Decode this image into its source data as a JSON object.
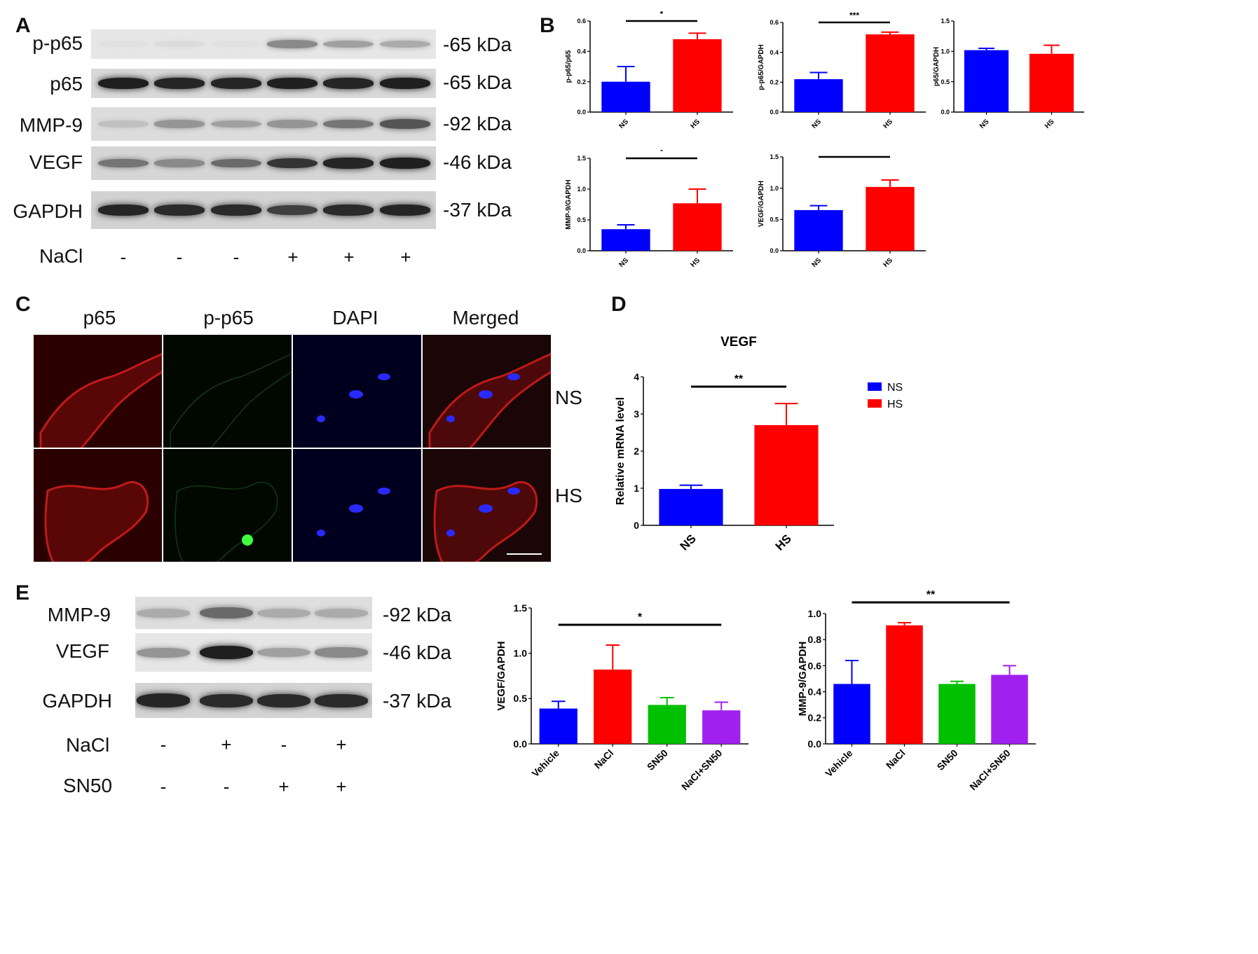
{
  "panels": {
    "a": "A",
    "b": "B",
    "c": "C",
    "d": "D",
    "e": "E"
  },
  "panelA": {
    "rows": [
      {
        "label": "p-p65",
        "kda": "-65 kDa"
      },
      {
        "label": "p65",
        "kda": "-65 kDa"
      },
      {
        "label": "MMP-9",
        "kda": "-92 kDa"
      },
      {
        "label": "VEGF",
        "kda": "-46 kDa"
      },
      {
        "label": "GAPDH",
        "kda": "-37 kDa"
      }
    ],
    "nacl_label": "NaCl",
    "nacl_signs": [
      "-",
      "-",
      "-",
      "+",
      "+",
      "+"
    ],
    "band_intensity": [
      [
        0.05,
        0.08,
        0.05,
        0.45,
        0.35,
        0.3
      ],
      [
        0.95,
        0.92,
        0.92,
        0.95,
        0.92,
        0.95
      ],
      [
        0.2,
        0.4,
        0.35,
        0.4,
        0.55,
        0.7
      ],
      [
        0.55,
        0.45,
        0.6,
        0.85,
        0.92,
        0.95
      ],
      [
        0.92,
        0.9,
        0.9,
        0.8,
        0.9,
        0.92
      ]
    ]
  },
  "panelC": {
    "channels": [
      "p65",
      "p-p65",
      "DAPI",
      "Merged"
    ],
    "channel_colors": [
      "#e8141a",
      "#3ac43a",
      "#1a1ae6",
      "#222222"
    ],
    "rows": [
      "NS",
      "HS"
    ]
  },
  "panelE": {
    "rows": [
      {
        "label": "MMP-9",
        "kda": "-92 kDa"
      },
      {
        "label": "VEGF",
        "kda": "-46 kDa"
      },
      {
        "label": "GAPDH",
        "kda": "-37 kDa"
      }
    ],
    "treatments": [
      {
        "label": "NaCl",
        "signs": [
          "-",
          "+",
          "-",
          "+"
        ]
      },
      {
        "label": "SN50",
        "signs": [
          "-",
          "-",
          "+",
          "+"
        ]
      }
    ],
    "band_intensity": [
      [
        0.3,
        0.6,
        0.3,
        0.3
      ],
      [
        0.4,
        0.95,
        0.35,
        0.45
      ],
      [
        0.92,
        0.9,
        0.9,
        0.9
      ]
    ]
  },
  "colors": {
    "ns": "#0000ff",
    "hs": "#ff0000",
    "sn50": "#00c000",
    "combo": "#a020f0"
  },
  "chart_data": [
    {
      "id": "B1",
      "type": "bar",
      "categories": [
        "NS",
        "HS"
      ],
      "values": [
        0.2,
        0.48
      ],
      "errors": [
        0.1,
        0.04
      ],
      "ylabel": "p-p65/p65",
      "ylim": [
        0,
        0.6
      ],
      "yticks": [
        "0.0",
        "0.2",
        "0.4",
        "0.6"
      ],
      "significance": "*"
    },
    {
      "id": "B2",
      "type": "bar",
      "categories": [
        "NS",
        "HS"
      ],
      "values": [
        0.22,
        0.52
      ],
      "errors": [
        0.045,
        0.015
      ],
      "ylabel": "p-p65/GAPDH",
      "ylim": [
        0,
        0.6
      ],
      "yticks": [
        "0.0",
        "0.2",
        "0.4",
        "0.6"
      ],
      "significance": "***"
    },
    {
      "id": "B3",
      "type": "bar",
      "categories": [
        "NS",
        "HS"
      ],
      "values": [
        1.02,
        0.96
      ],
      "errors": [
        0.03,
        0.14
      ],
      "ylabel": "p65/GAPDH",
      "ylim": [
        0,
        1.5
      ],
      "yticks": [
        "0.0",
        "0.5",
        "1.0",
        "1.5"
      ],
      "significance": ""
    },
    {
      "id": "B4",
      "type": "bar",
      "categories": [
        "NS",
        "HS"
      ],
      "values": [
        0.35,
        0.77
      ],
      "errors": [
        0.07,
        0.23
      ],
      "ylabel": "MMP-9/GAPDH",
      "ylim": [
        0,
        1.5
      ],
      "yticks": [
        "0.0",
        "0.5",
        "1.0",
        "1.5"
      ],
      "significance": "*"
    },
    {
      "id": "B5",
      "type": "bar",
      "categories": [
        "NS",
        "HS"
      ],
      "values": [
        0.65,
        1.02
      ],
      "errors": [
        0.07,
        0.11
      ],
      "ylabel": "VEGF/GAPDH",
      "ylim": [
        0,
        1.5
      ],
      "yticks": [
        "0.0",
        "0.5",
        "1.0",
        "1.5"
      ],
      "significance": "*"
    },
    {
      "id": "D",
      "type": "bar",
      "title": "VEGF",
      "categories": [
        "NS",
        "HS"
      ],
      "values": [
        0.98,
        2.7
      ],
      "errors": [
        0.1,
        0.58
      ],
      "ylabel": "Relative mRNA level",
      "ylim": [
        0,
        4
      ],
      "yticks": [
        "0",
        "1",
        "2",
        "3",
        "4"
      ],
      "significance": "**",
      "legend": [
        "NS",
        "HS"
      ],
      "legend_position": "top-right"
    },
    {
      "id": "E1",
      "type": "bar",
      "categories": [
        "Vehicle",
        "NaCl",
        "SN50",
        "NaCl+SN50"
      ],
      "values": [
        0.39,
        0.82,
        0.43,
        0.37
      ],
      "errors": [
        0.08,
        0.27,
        0.08,
        0.09
      ],
      "ylabel": "VEGF/GAPDH",
      "ylim": [
        0,
        1.5
      ],
      "yticks": [
        "0.0",
        "0.5",
        "1.0",
        "1.5"
      ],
      "significance": "*"
    },
    {
      "id": "E2",
      "type": "bar",
      "categories": [
        "Vehicle",
        "NaCl",
        "SN50",
        "NaCl+SN50"
      ],
      "values": [
        0.46,
        0.91,
        0.46,
        0.53
      ],
      "errors": [
        0.18,
        0.02,
        0.02,
        0.07
      ],
      "ylabel": "MMP-9/GAPDH",
      "ylim": [
        0,
        1.0
      ],
      "yticks": [
        "0.0",
        "0.2",
        "0.4",
        "0.6",
        "0.8",
        "1.0"
      ],
      "significance": "**"
    }
  ]
}
